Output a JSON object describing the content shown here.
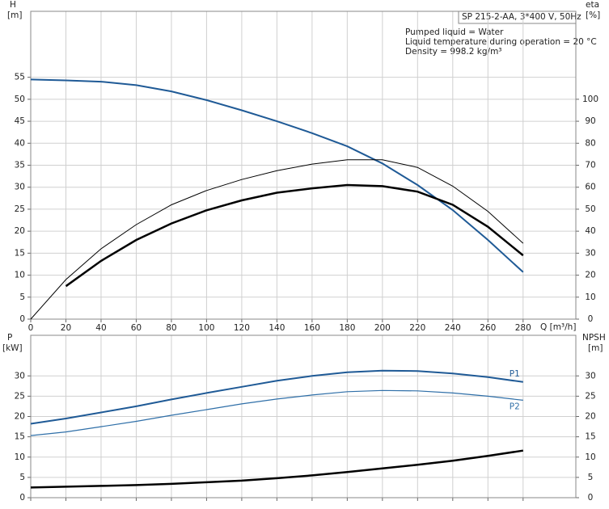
{
  "chart_data": [
    {
      "type": "line",
      "y_label": "H",
      "y_unit": "[m]",
      "y2_label": "eta",
      "y2_unit": "[%]",
      "x_label": "Q [m³/h]",
      "annotations": [
        "SP 215-2-AA, 3*400 V, 50Hz",
        "Pumped liquid = Water",
        "Liquid temperature during operation = 20 °C",
        "Density = 998.2 kg/m³"
      ],
      "x": [
        0,
        20,
        40,
        60,
        80,
        100,
        120,
        140,
        160,
        180,
        200,
        220,
        240,
        260,
        280
      ],
      "xlim": [
        0,
        310
      ],
      "xticks": [
        0,
        20,
        40,
        60,
        80,
        100,
        120,
        140,
        160,
        180,
        200,
        220,
        240,
        260,
        280
      ],
      "ylim": [
        0,
        70
      ],
      "yticks": [
        0,
        5,
        10,
        15,
        20,
        25,
        30,
        35,
        40,
        45,
        50,
        55
      ],
      "y2lim": [
        0,
        140
      ],
      "y2ticks": [
        0,
        10,
        20,
        30,
        40,
        50,
        60,
        70,
        80,
        90,
        100
      ],
      "grid": true,
      "series": [
        {
          "color": "#1f5a96",
          "line_width": 2,
          "values": [
            54.5,
            54.3,
            54,
            53.2,
            51.8,
            49.8,
            47.5,
            45,
            42.3,
            39.3,
            35.4,
            30.5,
            24.8,
            18,
            10.7
          ]
        },
        {
          "color": "#000000",
          "line_width": 1,
          "axis": "y2",
          "values": [
            0,
            18,
            32,
            43,
            52,
            58.5,
            63.5,
            67.5,
            70.5,
            72.5,
            72.5,
            69,
            60.5,
            49,
            34.5
          ]
        },
        {
          "color": "#000000",
          "line_width": 2.5,
          "axis": "y2",
          "values": [
            null,
            15,
            26.5,
            36,
            43.5,
            49.5,
            54,
            57.5,
            59.5,
            61,
            60.5,
            58,
            52,
            42,
            29
          ]
        }
      ]
    },
    {
      "type": "line",
      "y_label": "P",
      "y_unit": "[kW]",
      "y2_label": "NPSH",
      "y2_unit": "[m]",
      "x": [
        0,
        20,
        40,
        60,
        80,
        100,
        120,
        140,
        160,
        180,
        200,
        220,
        240,
        260,
        280
      ],
      "xlim": [
        0,
        310
      ],
      "ylim": [
        0,
        40
      ],
      "yticks": [
        0,
        5,
        10,
        15,
        20,
        25,
        30
      ],
      "y2lim": [
        0,
        40
      ],
      "y2ticks": [
        0,
        5,
        10,
        15,
        20,
        25,
        30
      ],
      "grid": true,
      "series": [
        {
          "name": "P1",
          "color": "#1f5a96",
          "line_width": 2,
          "values": [
            18.2,
            19.5,
            21,
            22.5,
            24.2,
            25.8,
            27.3,
            28.8,
            30,
            30.9,
            31.3,
            31.2,
            30.6,
            29.7,
            28.5
          ]
        },
        {
          "name": "P2",
          "color": "#2f6fa8",
          "line_width": 1.2,
          "values": [
            15.3,
            16.2,
            17.5,
            18.8,
            20.3,
            21.7,
            23.1,
            24.3,
            25.3,
            26.1,
            26.4,
            26.3,
            25.8,
            25,
            24
          ]
        },
        {
          "color": "#000000",
          "line_width": 2.5,
          "axis": "y2",
          "values": [
            2.5,
            2.7,
            2.9,
            3.1,
            3.4,
            3.8,
            4.2,
            4.8,
            5.5,
            6.3,
            7.2,
            8.1,
            9.1,
            10.3,
            11.6
          ]
        }
      ]
    }
  ]
}
